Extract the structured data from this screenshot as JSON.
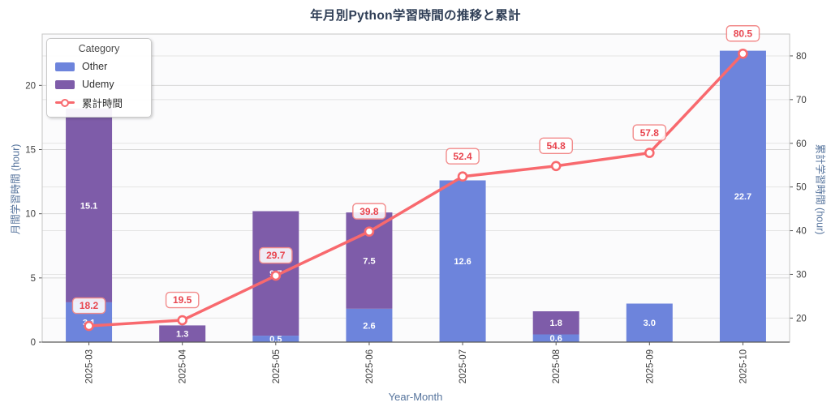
{
  "title": "年月別Python学習時間の推移と累計",
  "colors": {
    "title_text": "#2f3e56",
    "axis_label_text": "#55739c",
    "tick_text": "#3f3f3f",
    "grid_major": "#d8d8d8",
    "grid_minor": "#e4e4e4",
    "plot_border": "#c4c4c4",
    "bottom_spine": "#5a5a5a",
    "plot_bg": "#fbfbfc",
    "bar_other": "#6d84dc",
    "bar_udemy": "#7e5ca9",
    "bar_label_text": "#ffffff",
    "line": "#f8696e",
    "marker_fill": "#ffffff",
    "annotation_text": "#e8454f",
    "annotation_border": "#f28b8b",
    "annotation_bg": "rgba(255,255,255,0.88)"
  },
  "legend": {
    "title": "Category",
    "items": [
      {
        "label": "Other",
        "type": "swatch"
      },
      {
        "label": "Udemy",
        "type": "swatch"
      },
      {
        "label": "累計時間",
        "type": "line-marker"
      }
    ]
  },
  "chart_data": {
    "type": "bar",
    "subtype": "stacked-bars-with-cumulative-line",
    "title": "年月別Python学習時間の推移と累計",
    "xlabel": "Year-Month",
    "ylabel_left": "月間学習時間 (hour)",
    "ylabel_right": "累計学習時間 (hour)",
    "categories": [
      "2025-03",
      "2025-04",
      "2025-05",
      "2025-06",
      "2025-07",
      "2025-08",
      "2025-09",
      "2025-10"
    ],
    "series": [
      {
        "name": "Other",
        "axis": "left",
        "stack_order": 0,
        "values": [
          3.1,
          0,
          0.5,
          2.6,
          12.6,
          0.6,
          3.0,
          22.7
        ]
      },
      {
        "name": "Udemy",
        "axis": "left",
        "stack_order": 1,
        "values": [
          15.1,
          1.3,
          9.7,
          7.5,
          0,
          1.8,
          0,
          0
        ]
      }
    ],
    "line_series": {
      "name": "累計時間",
      "axis": "right",
      "values": [
        18.2,
        19.5,
        29.7,
        39.8,
        52.4,
        54.8,
        57.8,
        80.5
      ]
    },
    "annotations": [
      "18.2",
      "19.5",
      "29.7",
      "39.8",
      "52.4",
      "54.8",
      "57.8",
      "80.5"
    ],
    "left_axis": {
      "ticks": [
        0,
        5,
        10,
        15,
        20
      ],
      "range": [
        0,
        24
      ]
    },
    "right_axis": {
      "ticks": [
        20,
        30,
        40,
        50,
        60,
        70,
        80
      ],
      "range": [
        14.5,
        85
      ]
    },
    "grid": true,
    "legend_position": "upper-left"
  }
}
